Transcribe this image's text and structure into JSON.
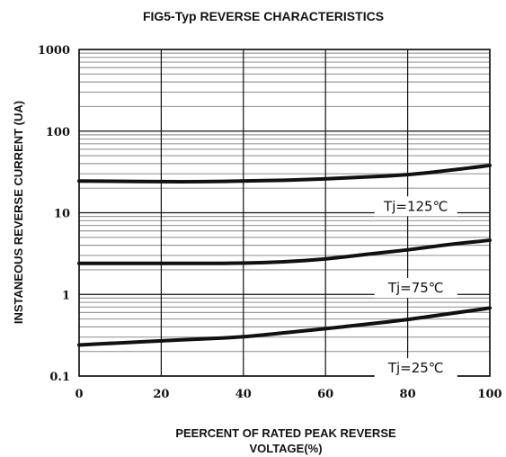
{
  "chart_data": {
    "type": "line",
    "title": "FIG5-Typ REVERSE CHARACTERISTICS",
    "xlabel_lines": [
      "PEERCENT OF RATED PEAK REVERSE",
      "VOLTAGE(%)"
    ],
    "ylabel": "INSTANEOUS REVERSE CURRENT (UA)",
    "xlim": [
      0,
      100
    ],
    "ylim": [
      0.1,
      1000
    ],
    "yscale": "log",
    "x_ticks": [
      0,
      20,
      40,
      60,
      80,
      100
    ],
    "x_tick_labels": [
      "0",
      "20",
      "40",
      "60",
      "80",
      "100"
    ],
    "y_ticks": [
      0.1,
      1,
      10,
      100,
      1000
    ],
    "y_tick_labels": [
      "0.1",
      "1",
      "10",
      "100",
      "1000"
    ],
    "grid": true,
    "legend": "none",
    "series": [
      {
        "name": "Tj=125℃",
        "x": [
          0,
          10,
          20,
          30,
          40,
          50,
          60,
          70,
          80,
          90,
          100
        ],
        "y": [
          24.5,
          24.2,
          24,
          24,
          24.5,
          25,
          26,
          27.5,
          29,
          33,
          38
        ]
      },
      {
        "name": "Tj=75℃",
        "x": [
          0,
          10,
          20,
          30,
          40,
          50,
          60,
          70,
          80,
          90,
          100
        ],
        "y": [
          2.4,
          2.4,
          2.4,
          2.4,
          2.4,
          2.5,
          2.7,
          3.1,
          3.5,
          4.1,
          4.6
        ]
      },
      {
        "name": "Tj=25℃",
        "x": [
          0,
          10,
          20,
          30,
          40,
          50,
          60,
          70,
          80,
          90,
          100
        ],
        "y": [
          0.24,
          0.255,
          0.27,
          0.285,
          0.3,
          0.34,
          0.38,
          0.43,
          0.49,
          0.58,
          0.68
        ]
      }
    ],
    "colors": {
      "curve": "#111111",
      "major_grid": "#111111",
      "minor_grid": "#9a9a9a",
      "frame": "#111111"
    }
  }
}
